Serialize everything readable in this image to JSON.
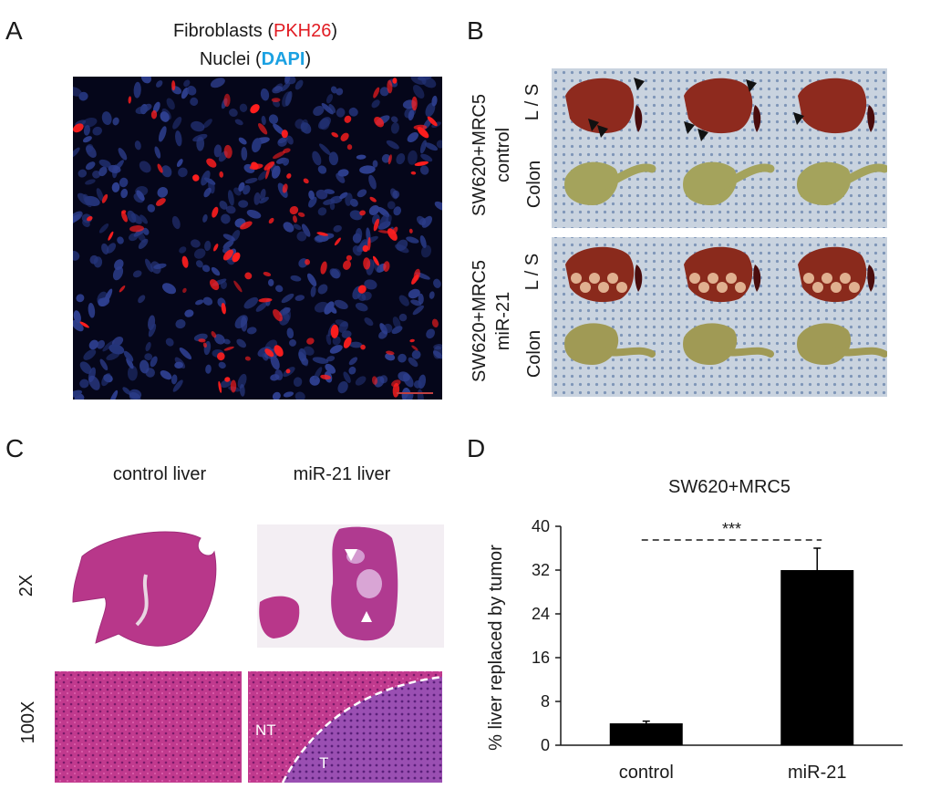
{
  "panels": {
    "a": {
      "letter": "A",
      "line1_prefix": "Fibroblasts (",
      "line1_stain": "PKH26",
      "line1_suffix": ")",
      "line2_prefix": "Nuclei (",
      "line2_stain": "DAPI",
      "line2_suffix": ")"
    },
    "b": {
      "letter": "B",
      "group1_line1": "SW620+MRC5",
      "group1_line2": "control",
      "group2_line1": "SW620+MRC5",
      "group2_line2": "miR-21",
      "row_ls": "L / S",
      "row_colon": "Colon"
    },
    "c": {
      "letter": "C",
      "col1": "control liver",
      "col2": "miR-21 liver",
      "row1": "2X",
      "row2": "100X",
      "label_nt": "NT",
      "label_t": "T"
    },
    "d": {
      "letter": "D"
    }
  },
  "colors": {
    "pkh26_red": "#e11b22",
    "dapi_blue": "#1ba1e2",
    "bar": "#000000"
  },
  "chart_data": {
    "type": "bar",
    "title": "SW620+MRC5",
    "ylabel": "% liver replaced by tumor",
    "xlabel": "",
    "categories": [
      "control",
      "miR-21"
    ],
    "values": [
      4,
      32
    ],
    "errors": [
      0.4,
      4
    ],
    "ylim": [
      0,
      40
    ],
    "yticks": [
      "0",
      "8",
      "16",
      "24",
      "32",
      "40"
    ],
    "significance": "***",
    "grid": false
  }
}
